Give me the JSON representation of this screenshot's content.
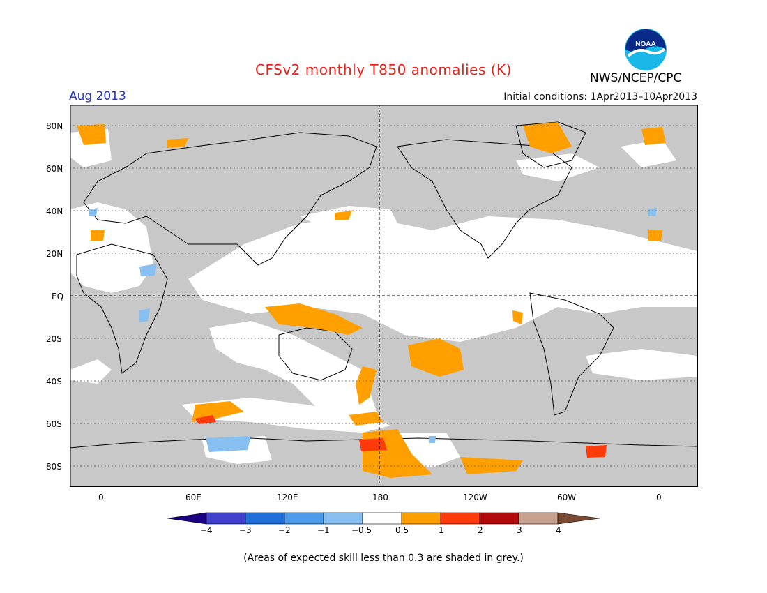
{
  "header": {
    "title": "CFSv2 monthly T850 anomalies (K)",
    "month": "Aug 2013",
    "initial_conditions": "Initial conditions: 1Apr2013–10Apr2013",
    "agency": "NWS/NCEP/CPC",
    "logo_text": "NOAA"
  },
  "map": {
    "projection": "equirectangular",
    "lat_labels": [
      "80N",
      "60N",
      "40N",
      "20N",
      "EQ",
      "20S",
      "40S",
      "60S",
      "80S"
    ],
    "lon_labels": [
      "0",
      "60E",
      "120E",
      "180",
      "120W",
      "60W",
      "0"
    ],
    "gridlines": "dotted",
    "colors": {
      "no_skill": "#c8c8c8",
      "land_outline": "#000000",
      "background": "#ffffff"
    }
  },
  "colorbar": {
    "labels": [
      "−4",
      "−3",
      "−2",
      "−1",
      "−0.5",
      "0.5",
      "1",
      "2",
      "3",
      "4"
    ],
    "colors": [
      "#1a0080",
      "#4040cc",
      "#1e6fd9",
      "#4b9be8",
      "#87bff0",
      "#ffffff",
      "#ff9f00",
      "#ff3a0a",
      "#b00a0a",
      "#c8a090",
      "#7a4a32"
    ]
  },
  "footnote": "(Areas of expected skill less than 0.3 are shaded in grey.)"
}
